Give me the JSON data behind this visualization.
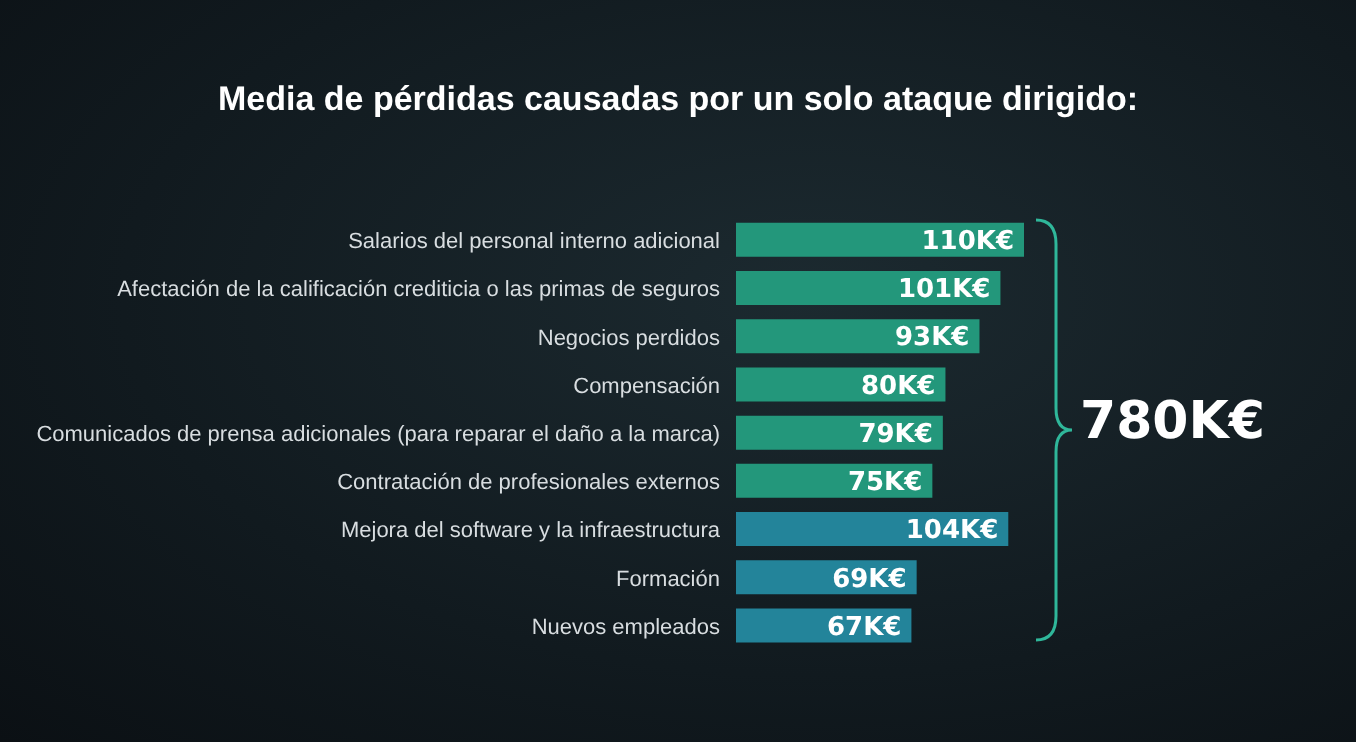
{
  "chart_data": {
    "type": "bar",
    "orientation": "horizontal",
    "title": "Media de pérdidas causadas por un solo ataque dirigido:",
    "categories": [
      "Salarios del personal interno adicional",
      "Afectación de la calificación crediticia o las primas de seguros",
      "Negocios perdidos",
      "Compensación",
      "Comunicados de prensa adicionales (para reparar el daño a la marca)",
      "Contratación de profesionales externos",
      "Mejora del software y la infraestructura",
      "Formación",
      "Nuevos empleados"
    ],
    "values": [
      110,
      101,
      93,
      80,
      79,
      75,
      104,
      69,
      67
    ],
    "value_labels": [
      "110K€",
      "101K€",
      "93K€",
      "80K€",
      "79K€",
      "75K€",
      "104K€",
      "69K€",
      "67K€"
    ],
    "colors": [
      "#23977b",
      "#23977b",
      "#23977b",
      "#23977b",
      "#23977b",
      "#23977b",
      "#23849a",
      "#23849a",
      "#23849a"
    ],
    "annotations": [
      "780K€"
    ],
    "grid": false,
    "legend": false
  }
}
